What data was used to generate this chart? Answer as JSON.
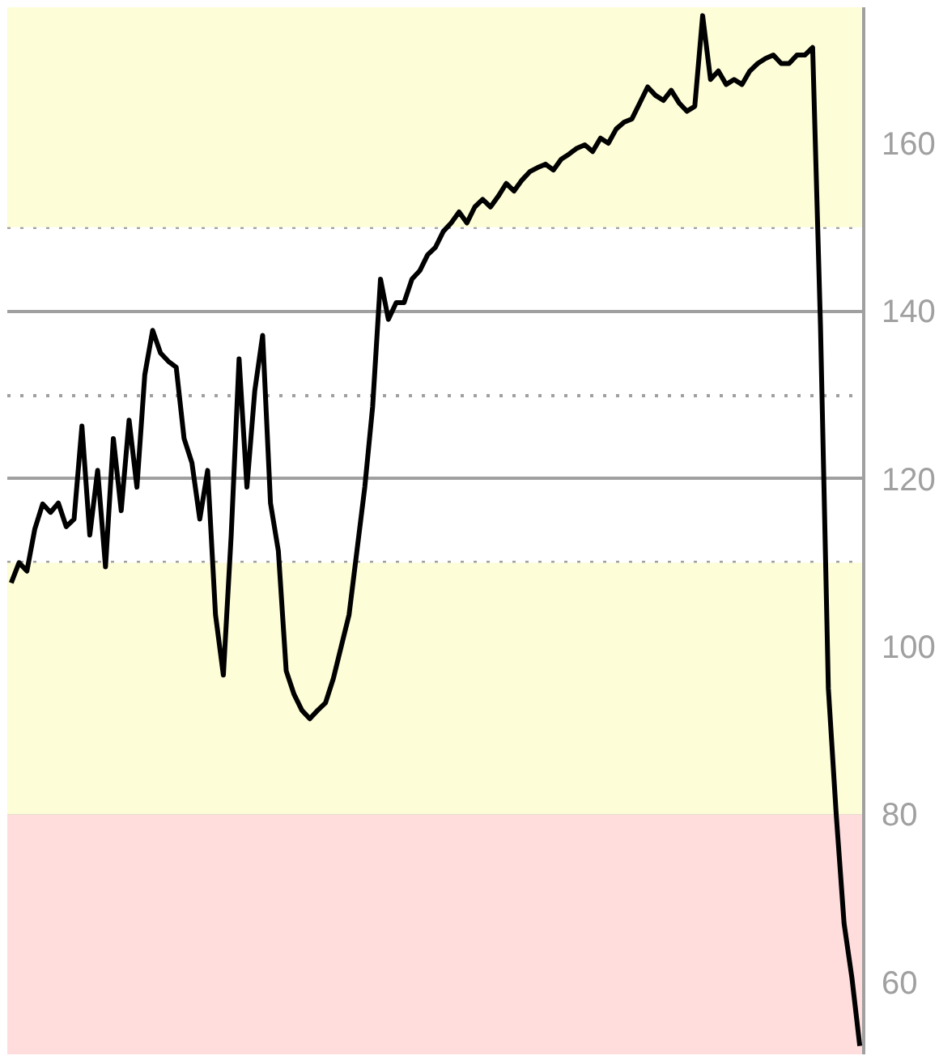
{
  "chart_data": {
    "type": "line",
    "categories": [
      null,
      null,
      null,
      null,
      null,
      null,
      null,
      null,
      null,
      null,
      null,
      null,
      null,
      null,
      null,
      null,
      null,
      null,
      null,
      null,
      null,
      null,
      null,
      null,
      null,
      null,
      null,
      null,
      null,
      null,
      null,
      null,
      null,
      null,
      null,
      null,
      null,
      null,
      null,
      null,
      null,
      null,
      null,
      null,
      null,
      null,
      null,
      null,
      null,
      null,
      null,
      null,
      null,
      null,
      null,
      null,
      null,
      null,
      null,
      null,
      null,
      null,
      null,
      null,
      null,
      null,
      null,
      null,
      null,
      null,
      null,
      null,
      null,
      null,
      null,
      null,
      null,
      null,
      null,
      null,
      null,
      null,
      null,
      null,
      null,
      null,
      null,
      null,
      null,
      null,
      null,
      null,
      null,
      null,
      null,
      null,
      null,
      null,
      null,
      null,
      null,
      null,
      null,
      null,
      null,
      null,
      null,
      null,
      null
    ],
    "series": [
      {
        "color": "#000000",
        "values": [
          107.6,
          110,
          109,
          114,
          117,
          116,
          117.1,
          114.3,
          115.2,
          126.3,
          113.3,
          121.0,
          109.5,
          124.8,
          116.2,
          127.0,
          119.0,
          132.4,
          137.7,
          135,
          134,
          133.3,
          124.8,
          121.9,
          115.2,
          121.0,
          103.8,
          96.6,
          113.3,
          134.3,
          119.0,
          130.5,
          137.1,
          117.1,
          111.4,
          97.1,
          94.3,
          92.4,
          91.4,
          92.4,
          93.3,
          96.2,
          100,
          103.8,
          111.4,
          119.0,
          128.6,
          143.8,
          139.0,
          141.0,
          141.0,
          143.8,
          144.8,
          146.7,
          147.6,
          149.5,
          150.5,
          151.8,
          150.5,
          152.4,
          153.3,
          152.4,
          153.7,
          155.2,
          154.3,
          155.6,
          156.6,
          157.1,
          157.5,
          156.8,
          158.1,
          158.7,
          159.4,
          159.8,
          159.0,
          160.6,
          160.0,
          161.7,
          162.5,
          162.9,
          164.8,
          166.7,
          165.7,
          165.1,
          166.3,
          164.8,
          163.8,
          164.4,
          175.2,
          167.6,
          168.6,
          167.0,
          167.6,
          167.0,
          168.6,
          169.5,
          170.1,
          170.5,
          169.5,
          169.5,
          170.5,
          170.5,
          171.4,
          138.1,
          95,
          80.0,
          67,
          60.5,
          52.4
        ]
      }
    ],
    "ylim": [
      51.4,
      176.2
    ],
    "yticks": [
      60,
      80,
      100,
      120,
      140,
      160
    ],
    "tick_labels": "y",
    "grid": "y",
    "bands": [
      {
        "axis": "y",
        "from": 51.4,
        "to": 80,
        "color": "#ffdddd"
      },
      {
        "axis": "y",
        "from": 80,
        "to": 110,
        "color": "#fdfdd8"
      },
      {
        "axis": "y",
        "from": 150,
        "to": 176.2,
        "color": "#fdfdd8"
      }
    ]
  }
}
